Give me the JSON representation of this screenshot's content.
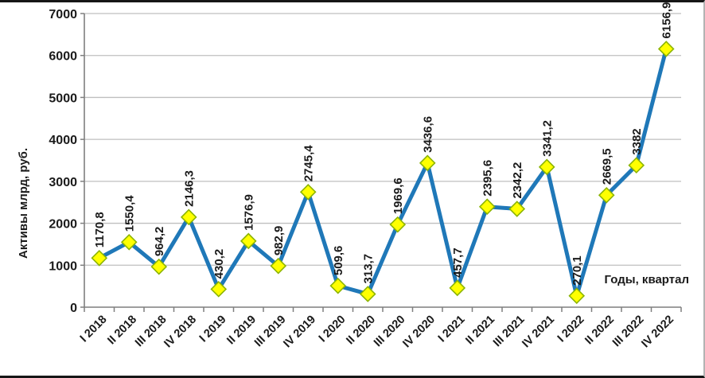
{
  "window": {
    "background": "#ffffff"
  },
  "chart_data": {
    "type": "line",
    "title": "",
    "xlabel": "Годы, квартал",
    "ylabel": "Активы млрд,  руб.",
    "categories": [
      "I 2018",
      "II 2018",
      "III 2018",
      "IV 2018",
      "I 2019",
      "II 2019",
      "III 2019",
      "IV 2019",
      "I 2020",
      "II 2020",
      "III 2020",
      "IV 2020",
      "I 2021",
      "II 2021",
      "III 2021",
      "IV 2021",
      "I 2022",
      "II 2022",
      "III 2022",
      "IV 2022"
    ],
    "values": [
      1170.8,
      1550.4,
      964.2,
      2146.3,
      430.2,
      1576.9,
      982.9,
      2745.4,
      509.6,
      313.7,
      1969.6,
      3436.6,
      457.7,
      2395.6,
      2342.2,
      3341.2,
      270.1,
      2669.5,
      3382,
      6156.9
    ],
    "point_labels": [
      "1170,8",
      "1550,4",
      "964,2",
      "2146,3",
      "430,2",
      "1576,9",
      "982,9",
      "2745,4",
      "509,6",
      "313,7",
      "1969,6",
      "3436,6",
      "457,7",
      "2395,6",
      "2342,2",
      "3341,2",
      "270,1",
      "2669,5",
      "3382",
      "6156,9"
    ],
    "ylim": [
      0,
      7000
    ],
    "y_tick_step": 1000,
    "y_ticks": [
      "0",
      "1000",
      "2000",
      "3000",
      "4000",
      "5000",
      "6000",
      "7000"
    ],
    "grid": true,
    "legend_position": "none",
    "line_color": "#1F78B8",
    "marker_shape": "diamond",
    "marker_fill": "#FFFF00",
    "marker_stroke": "#8CB400",
    "gridline_color": "#BFBFBF",
    "axis_color": "#7F7F7F",
    "text_color": "#1A1A1A"
  }
}
